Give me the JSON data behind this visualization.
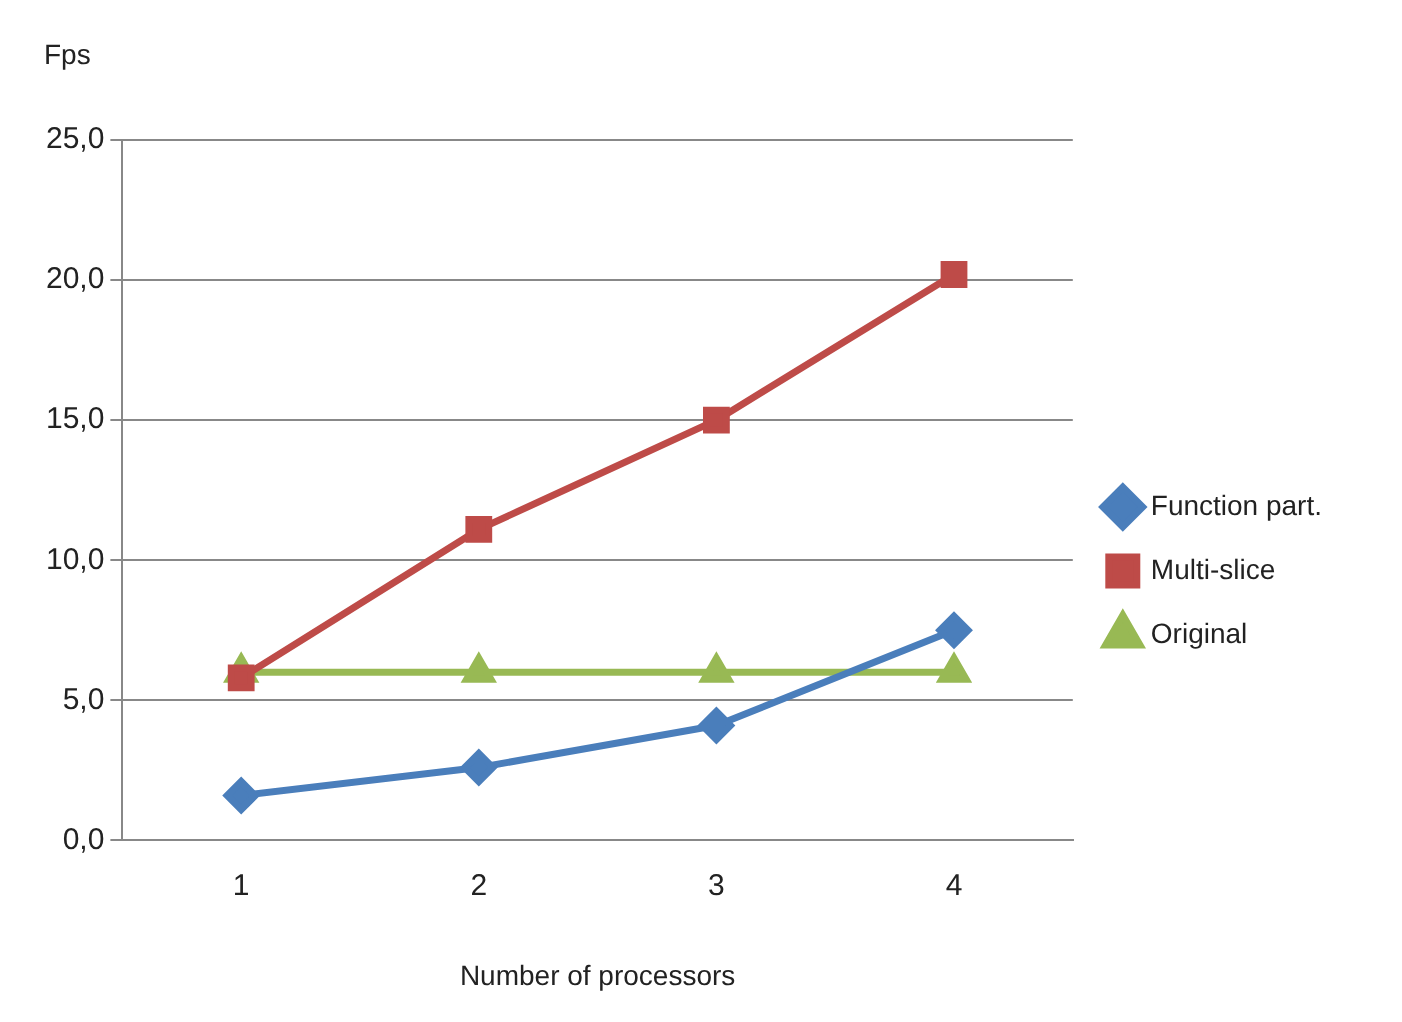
{
  "chart_data": {
    "type": "line",
    "xlabel": "Number of processors",
    "ylabel": "Fps",
    "categories": [
      "1",
      "2",
      "3",
      "4"
    ],
    "series": [
      {
        "name": "Function part.",
        "color": "#4a7ebb",
        "marker": "diamond",
        "values": [
          1.6,
          2.6,
          4.1,
          7.5
        ]
      },
      {
        "name": "Multi-slice",
        "color": "#be4b48",
        "marker": "square",
        "values": [
          5.8,
          11.1,
          15.0,
          20.2
        ]
      },
      {
        "name": "Original",
        "color": "#98b954",
        "marker": "triangle",
        "values": [
          6.0,
          6.0,
          6.0,
          6.0
        ]
      }
    ],
    "ylim": [
      0,
      25
    ],
    "yticks": [
      {
        "value": 0,
        "label": "0,0"
      },
      {
        "value": 5,
        "label": "5,0"
      },
      {
        "value": 10,
        "label": "10,0"
      },
      {
        "value": 15,
        "label": "15,0"
      },
      {
        "value": 20,
        "label": "20,0"
      },
      {
        "value": 25,
        "label": "25,0"
      }
    ],
    "grid": "y",
    "legend": "right",
    "line_style": "solid"
  }
}
